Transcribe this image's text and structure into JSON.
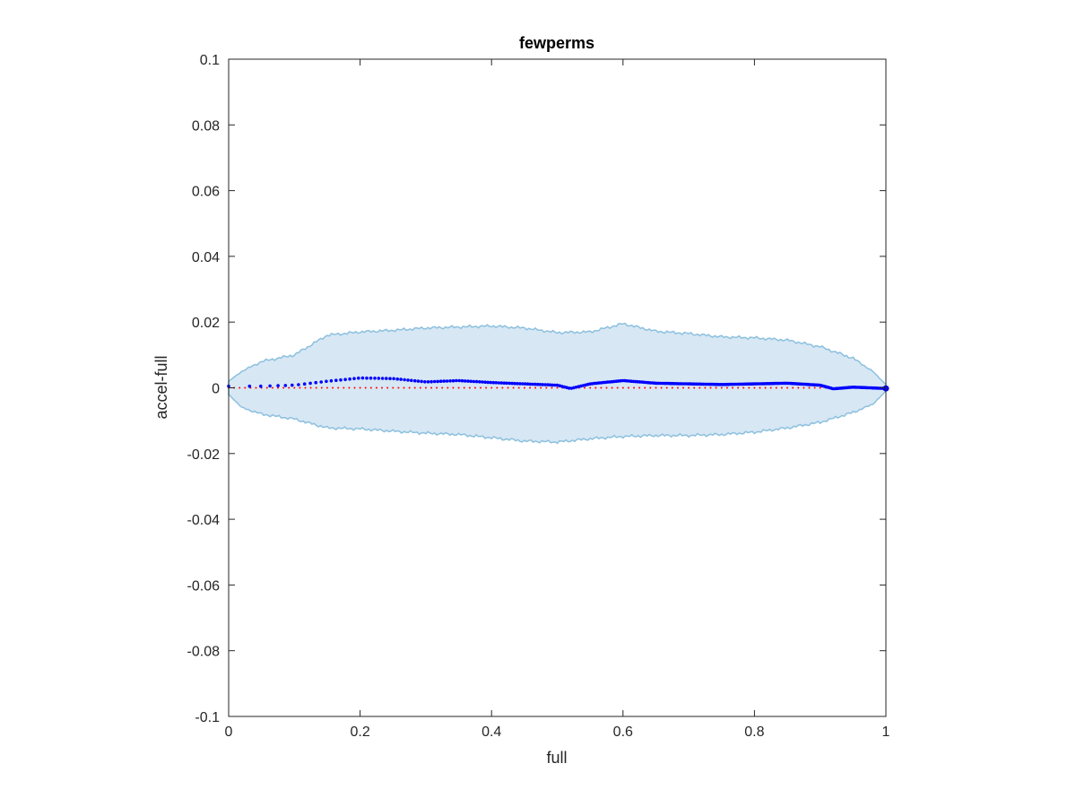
{
  "chart_data": {
    "type": "line",
    "title": "fewperms",
    "xlabel": "full",
    "ylabel": "accel-full",
    "xlim": [
      0,
      1
    ],
    "ylim": [
      -0.1,
      0.1
    ],
    "x_ticks": [
      "0",
      "0.2",
      "0.4",
      "0.6",
      "0.8",
      "1"
    ],
    "y_ticks": [
      "-0.1",
      "-0.08",
      "-0.06",
      "-0.04",
      "-0.02",
      "0",
      "0.02",
      "0.04",
      "0.06",
      "0.08",
      "0.1"
    ],
    "grid": false,
    "legend": "none",
    "colors": {
      "band_fill": "#d7e7f4",
      "band_edge": "#8cc0de",
      "series": "#0000ff",
      "reference": "#ff0000",
      "axes": "#262626"
    },
    "band": {
      "x": [
        0,
        0.02,
        0.05,
        0.1,
        0.15,
        0.2,
        0.25,
        0.3,
        0.35,
        0.4,
        0.45,
        0.5,
        0.55,
        0.6,
        0.65,
        0.7,
        0.75,
        0.8,
        0.85,
        0.9,
        0.95,
        0.98,
        1.0
      ],
      "upper": [
        0.002,
        0.005,
        0.008,
        0.01,
        0.016,
        0.017,
        0.0175,
        0.0182,
        0.0185,
        0.0188,
        0.0182,
        0.0168,
        0.017,
        0.0195,
        0.0172,
        0.0165,
        0.0155,
        0.0152,
        0.0145,
        0.0125,
        0.009,
        0.005,
        0.001
      ],
      "lower": [
        -0.002,
        -0.006,
        -0.008,
        -0.0095,
        -0.0122,
        -0.0125,
        -0.0132,
        -0.0138,
        -0.0142,
        -0.0152,
        -0.0162,
        -0.0165,
        -0.0155,
        -0.0148,
        -0.0145,
        -0.0145,
        -0.0142,
        -0.0135,
        -0.0122,
        -0.0105,
        -0.0075,
        -0.005,
        -0.001
      ]
    },
    "series": [
      {
        "x": [
          0,
          0.05,
          0.1,
          0.15,
          0.2,
          0.25,
          0.3,
          0.35,
          0.4,
          0.45,
          0.5,
          0.52,
          0.55,
          0.6,
          0.65,
          0.7,
          0.75,
          0.8,
          0.85,
          0.9,
          0.92,
          0.95,
          1.0
        ],
        "y": [
          0.0005,
          0.0005,
          0.0008,
          0.002,
          0.003,
          0.0028,
          0.0018,
          0.0022,
          0.0016,
          0.0012,
          0.0008,
          -0.0002,
          0.0012,
          0.0022,
          0.0014,
          0.0012,
          0.001,
          0.0012,
          0.0014,
          0.0008,
          -0.0003,
          0.0002,
          -0.0002
        ]
      },
      {
        "x": [
          0,
          1
        ],
        "y": [
          0,
          0
        ]
      }
    ]
  }
}
